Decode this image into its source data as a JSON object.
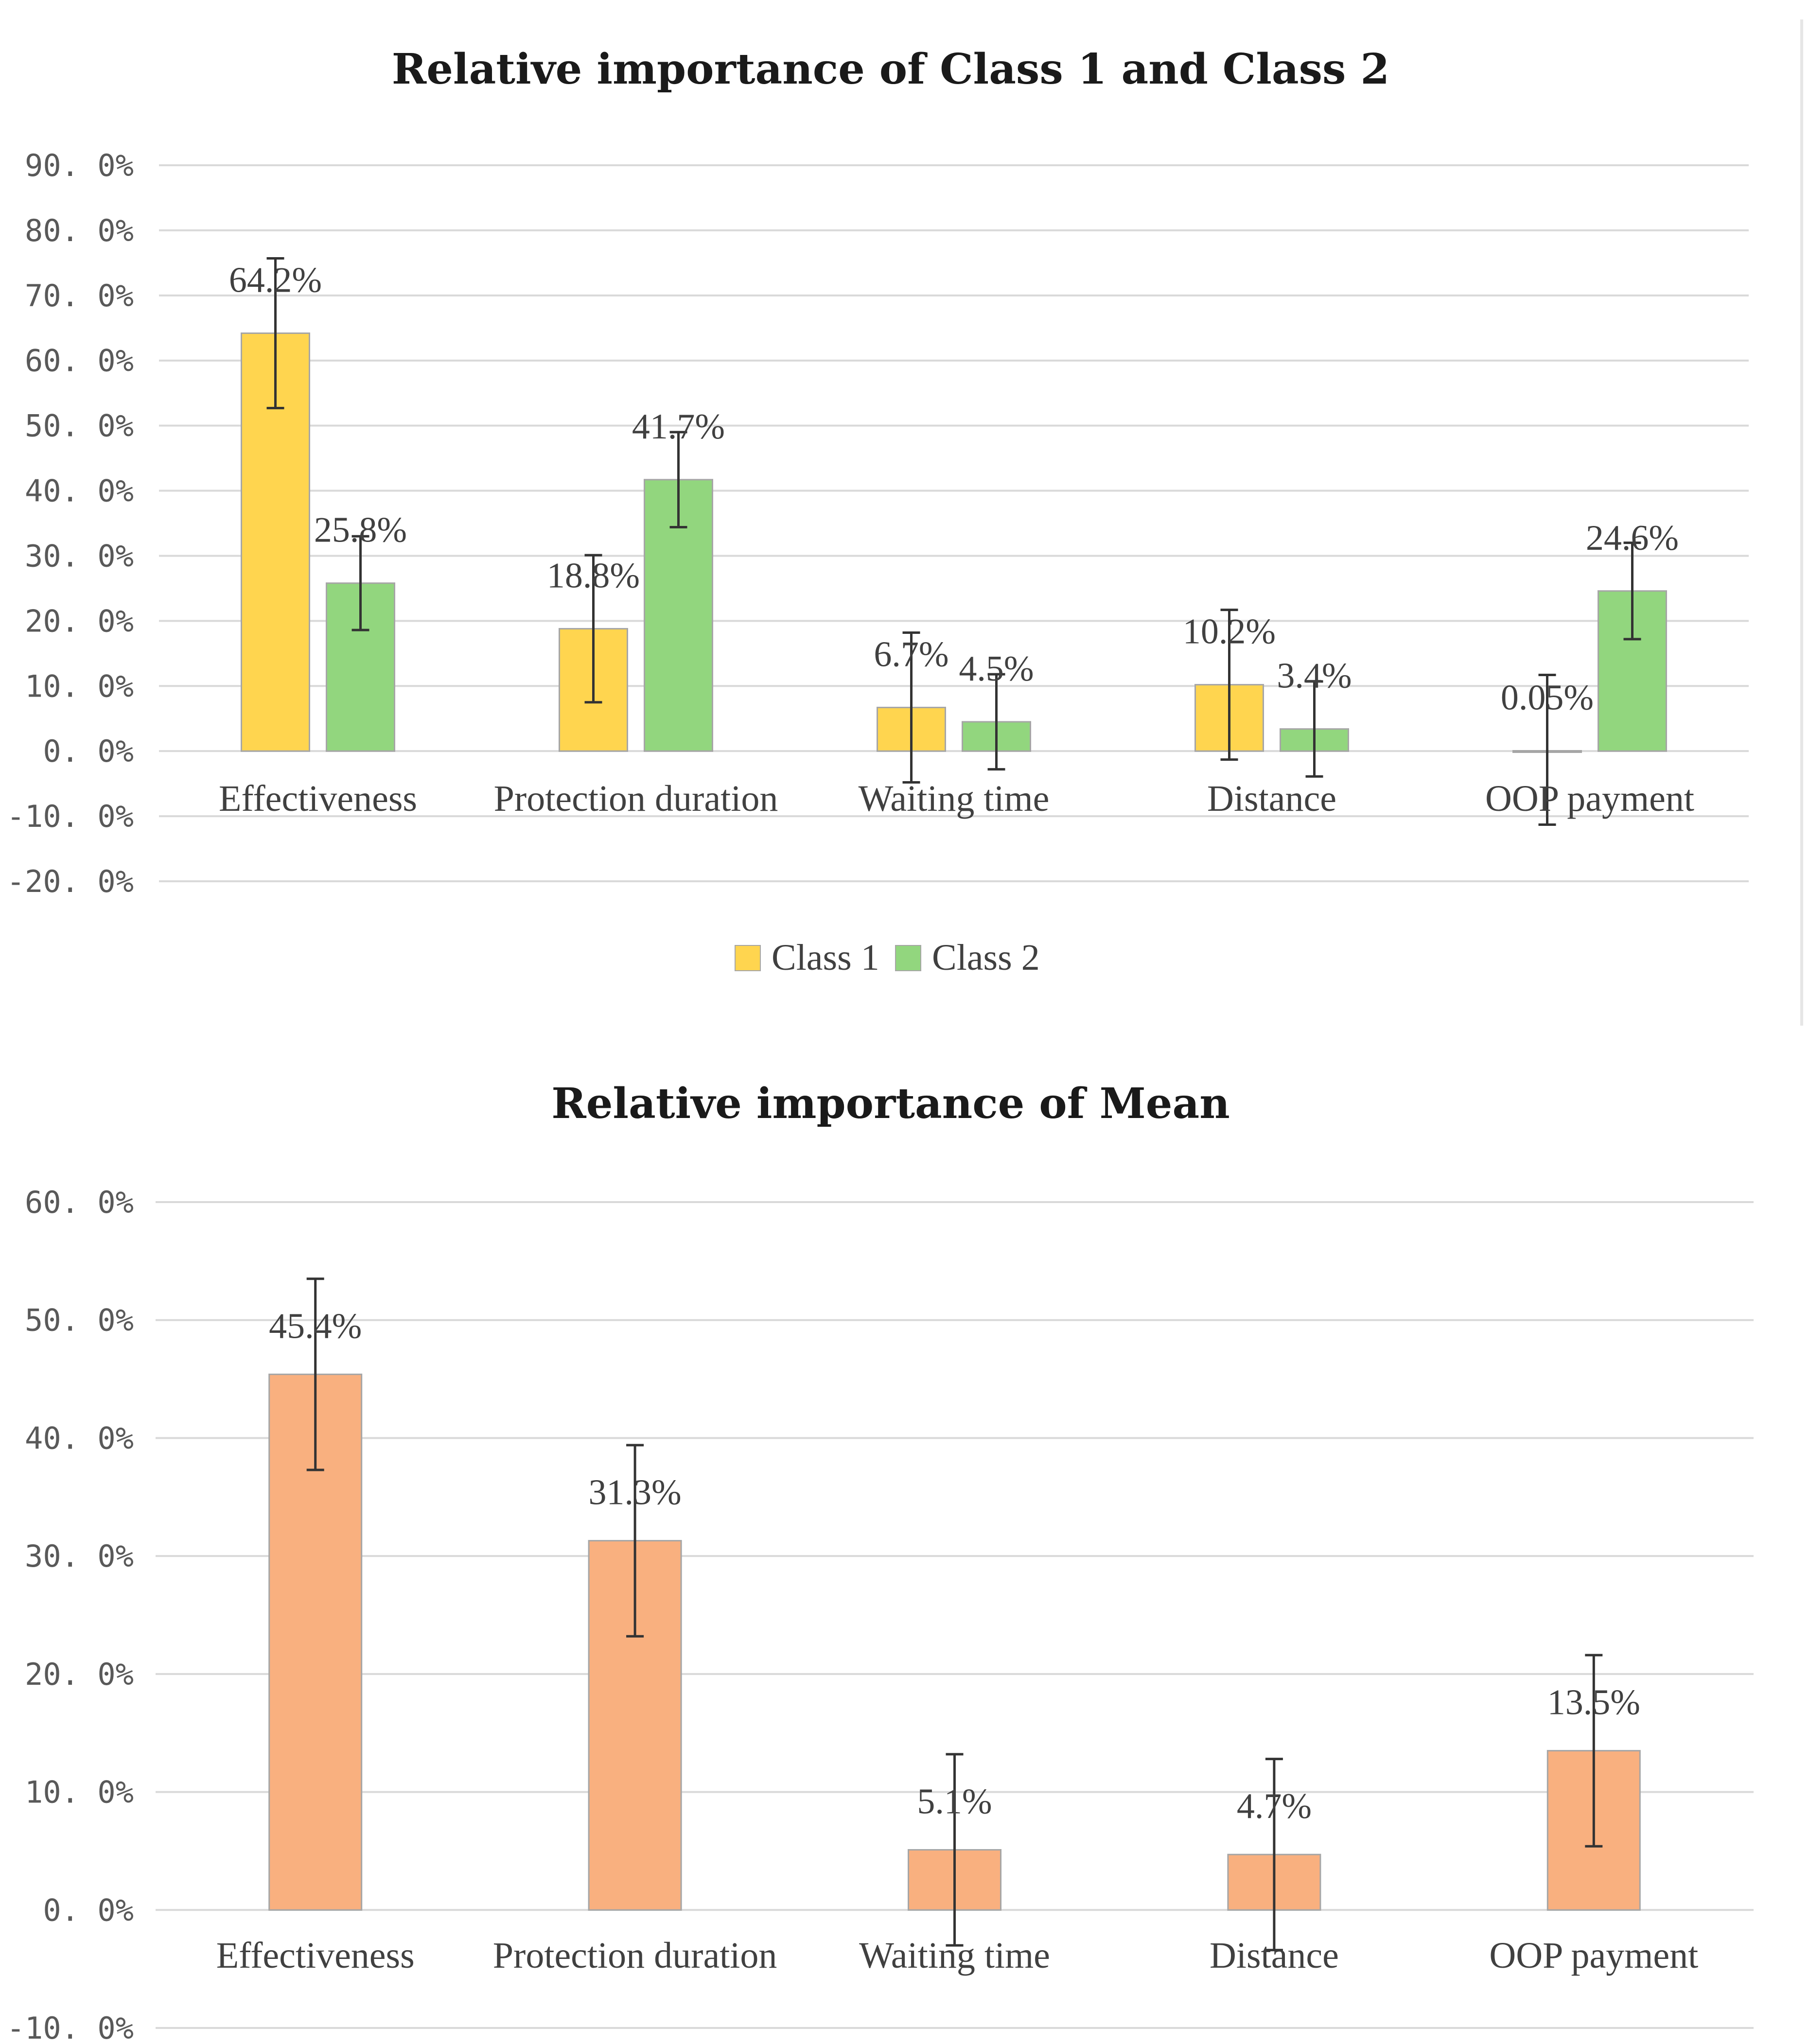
{
  "chart_data": [
    {
      "type": "bar",
      "title": "Relative importance of Class 1 and Class 2",
      "categories": [
        "Effectiveness",
        "Protection duration",
        "Waiting time",
        "Distance",
        "OOP payment"
      ],
      "ylim": [
        -20,
        90
      ],
      "ytick_step": 10,
      "ytick_labels": [
        "90. 0%",
        "80. 0%",
        "70. 0%",
        "60. 0%",
        "50. 0%",
        "40. 0%",
        "30. 0%",
        "20. 0%",
        "10. 0%",
        "0. 0%",
        "-10. 0%",
        "-20. 0%"
      ],
      "grid": true,
      "legend_position": "bottom",
      "series": [
        {
          "name": "Class 1",
          "color": "#ffd54f",
          "values": [
            64.2,
            18.8,
            6.7,
            10.2,
            0.05
          ],
          "labels": [
            "64.2%",
            "18.8%",
            "6.7%",
            "10.2%",
            "0.05%"
          ],
          "error_low": [
            52.7,
            7.5,
            -4.8,
            -1.3,
            -11.3
          ],
          "error_high": [
            75.7,
            30.1,
            18.2,
            21.7,
            11.7
          ]
        },
        {
          "name": "Class 2",
          "color": "#92d67e",
          "values": [
            25.8,
            41.7,
            4.5,
            3.4,
            24.6
          ],
          "labels": [
            "25.8%",
            "41.7%",
            "4.5%",
            "3.4%",
            "24.6%"
          ],
          "error_low": [
            18.6,
            34.4,
            -2.8,
            -3.9,
            17.2
          ],
          "error_high": [
            33.0,
            49.0,
            11.8,
            10.7,
            32.0
          ]
        }
      ]
    },
    {
      "type": "bar",
      "title": "Relative importance of Mean",
      "categories": [
        "Effectiveness",
        "Protection duration",
        "Waiting time",
        "Distance",
        "OOP payment"
      ],
      "ylim": [
        -10,
        60
      ],
      "ytick_step": 10,
      "ytick_labels": [
        "60. 0%",
        "50. 0%",
        "40. 0%",
        "30. 0%",
        "20. 0%",
        "10. 0%",
        "0. 0%",
        "-10. 0%"
      ],
      "grid": true,
      "legend_position": "none",
      "series": [
        {
          "name": "Mean",
          "color": "#f9b07f",
          "values": [
            45.4,
            31.3,
            5.1,
            4.7,
            13.5
          ],
          "labels": [
            "45.4%",
            "31.3%",
            "5.1%",
            "4.7%",
            "13.5%"
          ],
          "error_low": [
            37.3,
            23.2,
            -3.0,
            -3.4,
            5.4
          ],
          "error_high": [
            53.5,
            39.4,
            13.2,
            12.8,
            21.6
          ]
        }
      ]
    }
  ]
}
